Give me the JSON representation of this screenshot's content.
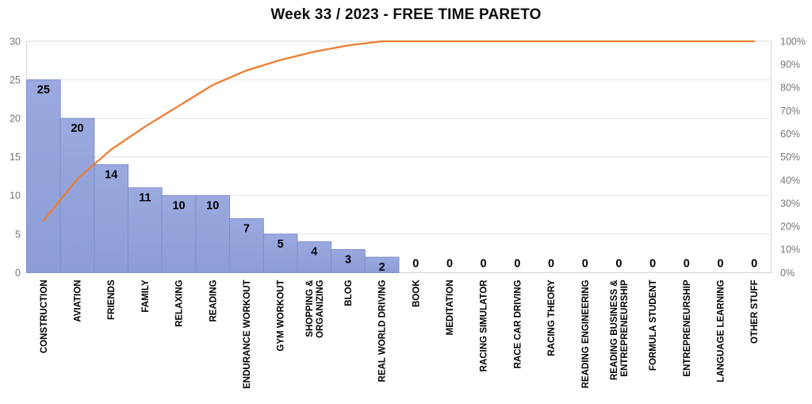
{
  "chart_data": {
    "type": "bar",
    "subtype": "pareto-with-cumulative-line",
    "title": "Week 33 / 2023 - FREE TIME PARETO",
    "categories": [
      "CONSTRUCTION",
      "AVIATION",
      "FRIENDS",
      "FAMILY",
      "RELAXING",
      "READING",
      "ENDURANCE WORKOUT",
      "GYM WORKOUT",
      "SHOPPING & ORGANIZING",
      "BLOG",
      "REAL WORLD DRIVING",
      "BOOK",
      "MEDITATION",
      "RACING SIMULATOR",
      "RACE CAR DRIVING",
      "RACING THEORY",
      "READING ENGINEERING",
      "READING BUSINESS & ENTREPRENEURSHIP",
      "FORMULA STUDENT",
      "ENTREPRENEURSHIP",
      "LANGUAGE LEARNING",
      "OTHER STUFF"
    ],
    "category_lines": [
      [
        "CONSTRUCTION"
      ],
      [
        "AVIATION"
      ],
      [
        "FRIENDS"
      ],
      [
        "FAMILY"
      ],
      [
        "RELAXING"
      ],
      [
        "READING"
      ],
      [
        "ENDURANCE WORKOUT"
      ],
      [
        "GYM WORKOUT"
      ],
      [
        "SHOPPING &",
        "ORGANIZING"
      ],
      [
        "BLOG"
      ],
      [
        "REAL WORLD DRIVING"
      ],
      [
        "BOOK"
      ],
      [
        "MEDITATION"
      ],
      [
        "RACING SIMULATOR"
      ],
      [
        "RACE CAR DRIVING"
      ],
      [
        "RACING THEORY"
      ],
      [
        "READING ENGINEERING"
      ],
      [
        "READING BUSINESS &",
        "ENTREPRENEURSHIP"
      ],
      [
        "FORMULA STUDENT"
      ],
      [
        "ENTREPRENEURSHIP"
      ],
      [
        "LANGUAGE LEARNING"
      ],
      [
        "OTHER STUFF"
      ]
    ],
    "values": [
      25,
      20,
      14,
      11,
      10,
      10,
      7,
      5,
      4,
      3,
      2,
      0,
      0,
      0,
      0,
      0,
      0,
      0,
      0,
      0,
      0,
      0
    ],
    "value_labels": [
      "25",
      "20",
      "14",
      "11",
      "10",
      "10",
      "7",
      "5",
      "4",
      "3",
      "2",
      "0",
      "0",
      "0",
      "0",
      "0",
      "0",
      "0",
      "0",
      "0",
      "0",
      "0"
    ],
    "cumulative_pct": [
      22.5,
      40.5,
      53.2,
      63.1,
      72.1,
      81.1,
      87.4,
      91.9,
      95.5,
      98.2,
      100,
      100,
      100,
      100,
      100,
      100,
      100,
      100,
      100,
      100,
      100,
      100
    ],
    "left_axis": {
      "min": 0,
      "max": 30,
      "step": 5,
      "tick_labels": [
        "0",
        "5",
        "10",
        "15",
        "20",
        "25",
        "30"
      ]
    },
    "right_axis": {
      "min": 0,
      "max": 100,
      "step": 10,
      "tick_labels": [
        "0%",
        "10%",
        "20%",
        "30%",
        "40%",
        "50%",
        "60%",
        "70%",
        "80%",
        "90%",
        "100%"
      ]
    },
    "grid": "horizontal-only",
    "legend": "none",
    "colors": {
      "bar_fill_top": "#9AA9DF",
      "bar_fill_bottom": "#8C9DD6",
      "bar_border": "#7D8FCB",
      "cumulative_line": "#ED7D31",
      "gridline": "#E4E4E4",
      "plot_border": "#D6D6D6",
      "axis_text": "#757575",
      "value_label_text": "#000000",
      "category_text": "#000000",
      "title_text": "#0d0d0d"
    }
  }
}
